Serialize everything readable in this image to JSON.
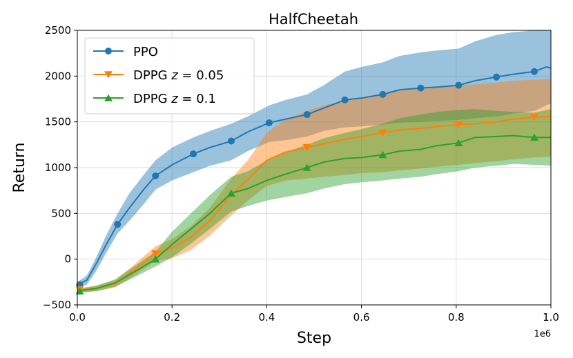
{
  "chart_data": {
    "type": "line",
    "title": "HalfCheetah",
    "xlabel": "Step",
    "ylabel": "Return",
    "x_offset_label": "1e6",
    "xlim": [
      0,
      1.0
    ],
    "ylim": [
      -500,
      2500
    ],
    "x_ticks": [
      0.0,
      0.2,
      0.4,
      0.6,
      0.8,
      1.0
    ],
    "x_tick_labels": [
      "0.0",
      "0.2",
      "0.4",
      "0.6",
      "0.8",
      "1.0"
    ],
    "y_ticks": [
      -500,
      0,
      500,
      1000,
      1500,
      2000,
      2500
    ],
    "y_tick_labels": [
      "−500",
      "0",
      "500",
      "1000",
      "1500",
      "2000",
      "2500"
    ],
    "grid": true,
    "legend_position": "top-left",
    "series": [
      {
        "name": "PPO",
        "color": "#1f77b4",
        "marker": "circle",
        "x": [
          0.0,
          0.02,
          0.04,
          0.06,
          0.085,
          0.11,
          0.14,
          0.165,
          0.2,
          0.245,
          0.28,
          0.325,
          0.36,
          0.405,
          0.44,
          0.485,
          0.52,
          0.565,
          0.6,
          0.645,
          0.68,
          0.725,
          0.76,
          0.805,
          0.84,
          0.885,
          0.92,
          0.965,
          0.99,
          1.0
        ],
        "y": [
          -280,
          -230,
          -50,
          150,
          380,
          560,
          760,
          910,
          1030,
          1150,
          1220,
          1290,
          1390,
          1490,
          1530,
          1580,
          1650,
          1740,
          1760,
          1800,
          1850,
          1870,
          1880,
          1900,
          1950,
          1990,
          2020,
          2050,
          2100,
          2090
        ],
        "upper": [
          -250,
          -180,
          20,
          250,
          500,
          720,
          920,
          1080,
          1220,
          1330,
          1400,
          1480,
          1560,
          1680,
          1740,
          1800,
          1900,
          2050,
          2100,
          2150,
          2220,
          2260,
          2280,
          2300,
          2380,
          2450,
          2480,
          2500,
          2500,
          2500
        ],
        "lower": [
          -310,
          -280,
          -130,
          60,
          280,
          420,
          600,
          760,
          860,
          950,
          1020,
          1080,
          1180,
          1280,
          1300,
          1340,
          1400,
          1440,
          1450,
          1470,
          1490,
          1500,
          1510,
          1520,
          1540,
          1560,
          1590,
          1620,
          1680,
          1700
        ],
        "markers_x": [
          0.005,
          0.085,
          0.165,
          0.245,
          0.325,
          0.405,
          0.485,
          0.565,
          0.645,
          0.725,
          0.805,
          0.885,
          0.965
        ],
        "markers_y": [
          -280,
          380,
          910,
          1150,
          1290,
          1490,
          1580,
          1740,
          1800,
          1870,
          1900,
          1990,
          2050
        ]
      },
      {
        "name": "DPPG z = 0.05",
        "name_base": "DPPG ",
        "name_var": "z",
        "name_rest": " = 0.05",
        "color": "#ff7f0e",
        "marker": "triangle-down",
        "x": [
          0.0,
          0.04,
          0.08,
          0.12,
          0.165,
          0.2,
          0.24,
          0.28,
          0.325,
          0.36,
          0.4,
          0.44,
          0.485,
          0.52,
          0.565,
          0.6,
          0.645,
          0.68,
          0.725,
          0.76,
          0.805,
          0.84,
          0.885,
          0.92,
          0.965,
          1.0
        ],
        "y": [
          -340,
          -320,
          -270,
          -120,
          60,
          120,
          240,
          420,
          700,
          870,
          1080,
          1170,
          1220,
          1260,
          1310,
          1340,
          1380,
          1410,
          1430,
          1450,
          1470,
          1480,
          1500,
          1530,
          1550,
          1560
        ],
        "upper": [
          -320,
          -290,
          -230,
          -60,
          140,
          220,
          360,
          560,
          880,
          1080,
          1380,
          1530,
          1620,
          1680,
          1730,
          1770,
          1810,
          1840,
          1860,
          1880,
          1900,
          1910,
          1930,
          1950,
          1960,
          1970
        ],
        "lower": [
          -360,
          -350,
          -310,
          -180,
          -20,
          10,
          100,
          260,
          480,
          640,
          800,
          860,
          880,
          900,
          920,
          940,
          950,
          970,
          990,
          1010,
          1030,
          1050,
          1070,
          1090,
          1110,
          1120
        ],
        "markers_x": [
          0.005,
          0.165,
          0.485,
          0.645,
          0.805,
          0.965
        ],
        "markers_y": [
          -330,
          60,
          1220,
          1380,
          1470,
          1550
        ]
      },
      {
        "name": "DPPG z = 0.1",
        "name_base": "DPPG ",
        "name_var": "z",
        "name_rest": " = 0.1",
        "color": "#2ca02c",
        "marker": "triangle-up",
        "x": [
          0.0,
          0.04,
          0.08,
          0.12,
          0.165,
          0.2,
          0.24,
          0.28,
          0.325,
          0.36,
          0.4,
          0.44,
          0.485,
          0.52,
          0.565,
          0.6,
          0.645,
          0.68,
          0.725,
          0.76,
          0.805,
          0.84,
          0.885,
          0.92,
          0.965,
          1.0
        ],
        "y": [
          -350,
          -320,
          -260,
          -140,
          0,
          160,
          330,
          500,
          720,
          770,
          860,
          930,
          1000,
          1060,
          1100,
          1110,
          1140,
          1180,
          1200,
          1240,
          1270,
          1330,
          1340,
          1350,
          1330,
          1330
        ],
        "upper": [
          -330,
          -290,
          -220,
          -80,
          80,
          300,
          500,
          700,
          900,
          960,
          1080,
          1170,
          1250,
          1320,
          1380,
          1420,
          1480,
          1540,
          1580,
          1610,
          1630,
          1640,
          1620,
          1610,
          1600,
          1640
        ],
        "lower": [
          -370,
          -350,
          -300,
          -200,
          -80,
          20,
          170,
          330,
          520,
          580,
          640,
          680,
          720,
          770,
          820,
          840,
          860,
          880,
          900,
          930,
          960,
          1000,
          1020,
          1040,
          1030,
          1020
        ],
        "markers_x": [
          0.005,
          0.165,
          0.325,
          0.485,
          0.645,
          0.805,
          0.965
        ],
        "markers_y": [
          -350,
          0,
          720,
          1000,
          1140,
          1270,
          1330
        ]
      }
    ]
  }
}
